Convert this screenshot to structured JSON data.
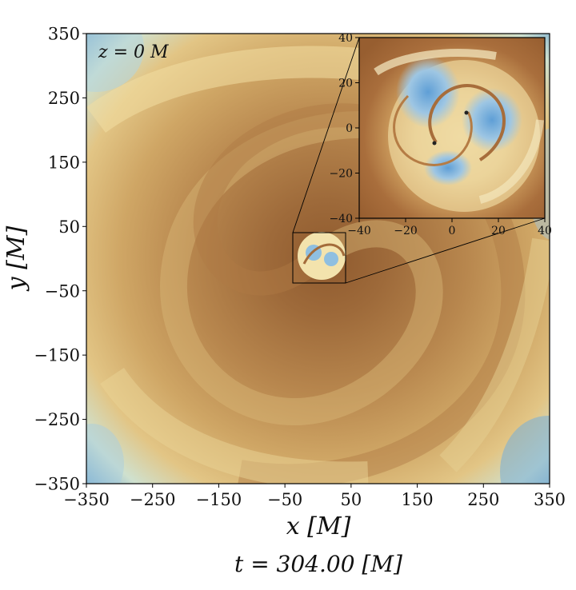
{
  "chart_data": [
    {
      "type": "heatmap",
      "title": "",
      "xlabel": "x [M]",
      "ylabel": "y [M]",
      "xlim": [
        -350,
        350
      ],
      "ylim": [
        -350,
        350
      ],
      "xticks": [
        -350,
        -250,
        -150,
        -50,
        50,
        150,
        250,
        350
      ],
      "yticks": [
        350,
        250,
        150,
        50,
        -50,
        -150,
        -250,
        -350
      ],
      "xtick_labels": [
        "−350",
        "−250",
        "−150",
        "−50",
        "50",
        "150",
        "250",
        "350"
      ],
      "ytick_labels": [
        "350",
        "250",
        "150",
        "50",
        "−50",
        "−150",
        "−250",
        "−350"
      ],
      "annotation": "z = 0 M",
      "footer": "t = 304.00 [M]",
      "inset_region": {
        "x": [
          -40,
          40
        ],
        "y": [
          -40,
          40
        ]
      },
      "grid": false,
      "colors": {
        "dark": "#9b6536",
        "mid": "#c89a5c",
        "light": "#f3e3a9",
        "cyan": "#cfe8df",
        "blue": "#6fa8d6"
      }
    },
    {
      "type": "heatmap",
      "title": "",
      "xlim": [
        -40,
        40
      ],
      "ylim": [
        -40,
        40
      ],
      "xticks": [
        -40,
        -20,
        0,
        20,
        40
      ],
      "yticks": [
        40,
        20,
        0,
        -20,
        -40
      ],
      "xtick_labels": [
        "−40",
        "−20",
        "0",
        "20",
        "40"
      ],
      "ytick_labels": [
        "40",
        "20",
        "0",
        "−20",
        "−40"
      ],
      "grid": false
    }
  ]
}
